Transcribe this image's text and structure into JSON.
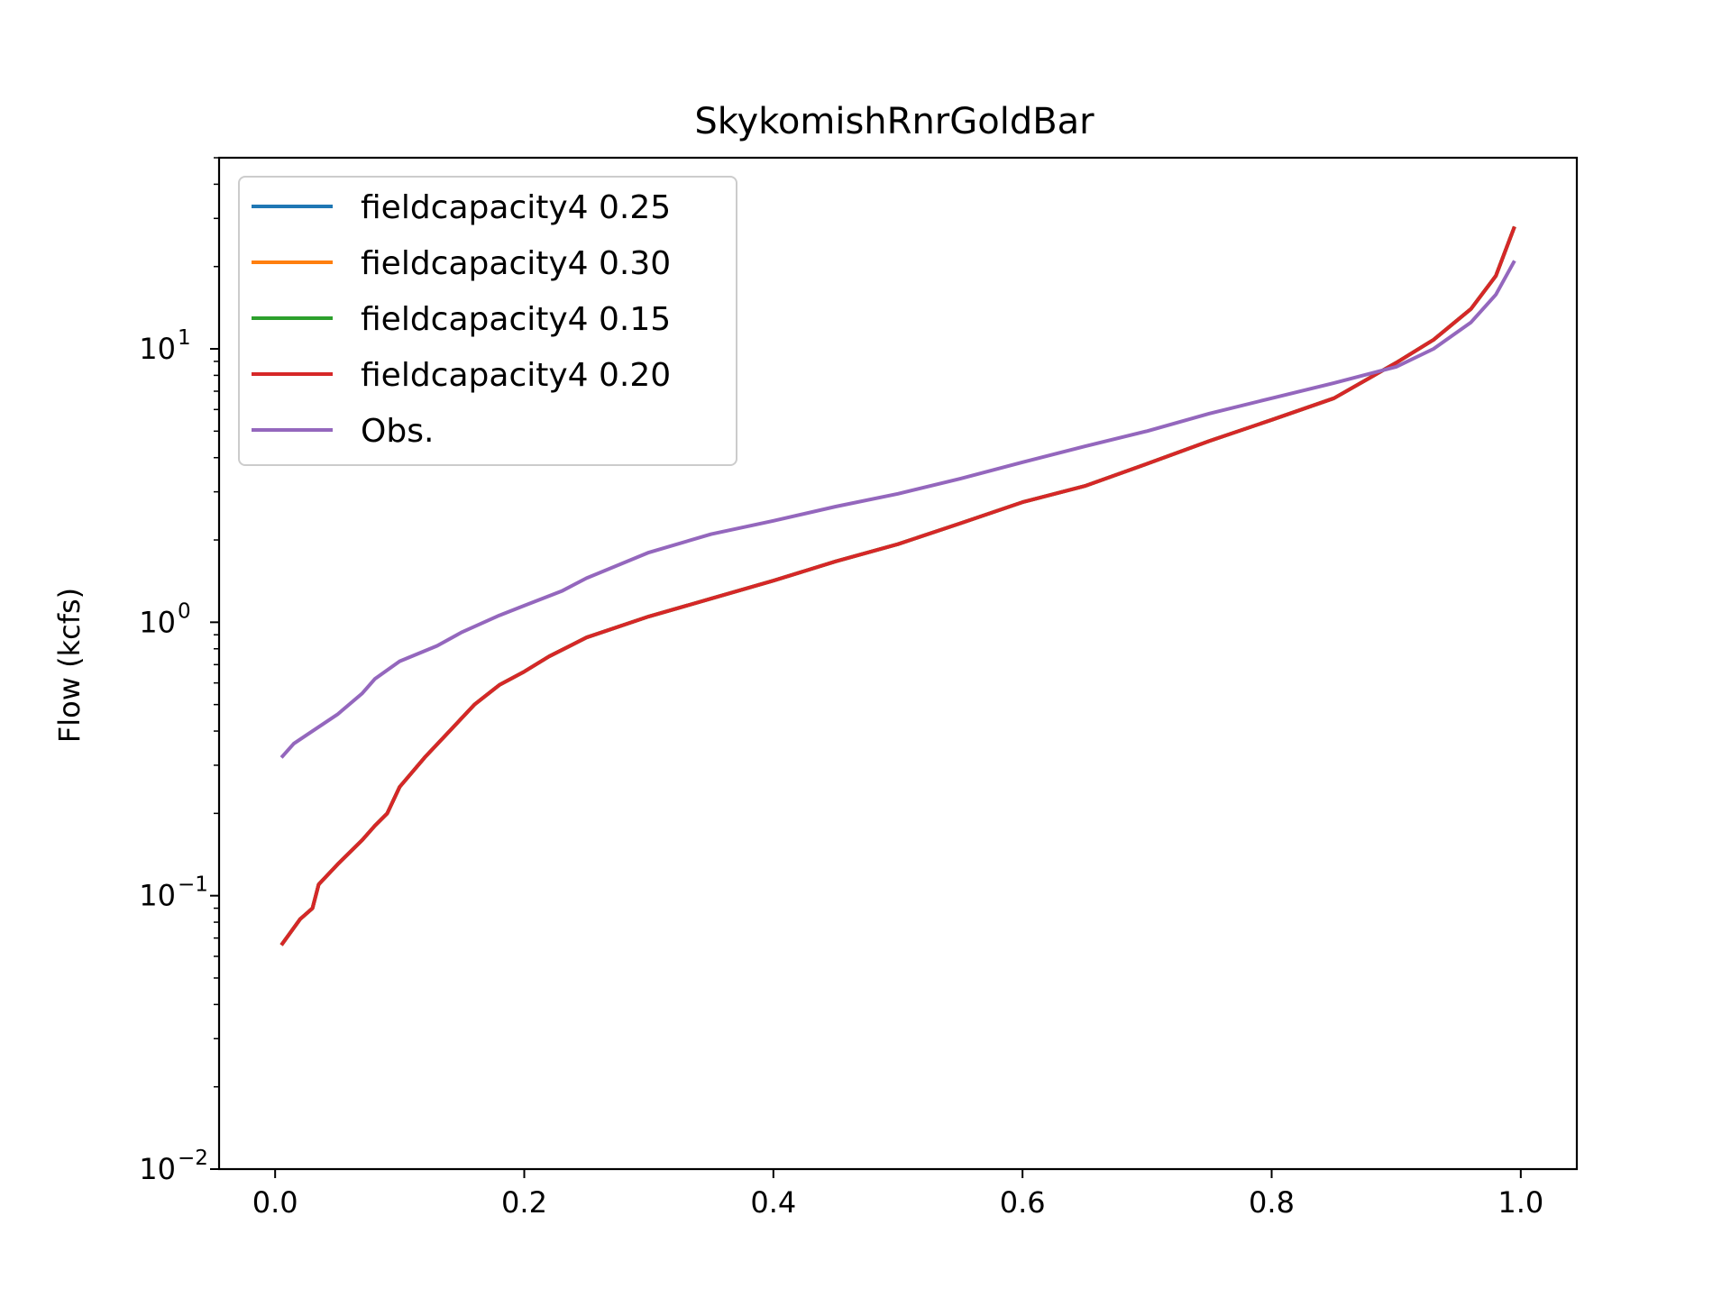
{
  "chart_data": {
    "type": "line",
    "title": "SkykomishRnrGoldBar",
    "xlabel": "",
    "ylabel": "Flow (kcfs)",
    "yscale": "log",
    "xlim": [
      -0.045,
      1.045
    ],
    "ylim": [
      0.01,
      50
    ],
    "x_ticks": [
      "0.0",
      "0.2",
      "0.4",
      "0.6",
      "0.8",
      "1.0"
    ],
    "x_tick_values": [
      0.0,
      0.2,
      0.4,
      0.6,
      0.8,
      1.0
    ],
    "y_ticks": [
      {
        "value": 0.01,
        "base": "10",
        "exp": "−2"
      },
      {
        "value": 0.1,
        "base": "10",
        "exp": "−1"
      },
      {
        "value": 1,
        "base": "10",
        "exp": "0"
      },
      {
        "value": 10,
        "base": "10",
        "exp": "1"
      }
    ],
    "grid": false,
    "legend_position": "top-left",
    "colors": {
      "fieldcapacity4 0.25": "#1f77b4",
      "fieldcapacity4 0.30": "#ff7f0e",
      "fieldcapacity4 0.15": "#2ca02c",
      "fieldcapacity4 0.20": "#d62728",
      "Obs.": "#9467bd"
    },
    "series": [
      {
        "name": "fieldcapacity4 0.25",
        "color": "#1f77b4",
        "x": [
          0.005,
          0.02,
          0.03,
          0.035,
          0.05,
          0.07,
          0.08,
          0.09,
          0.1,
          0.12,
          0.14,
          0.16,
          0.18,
          0.2,
          0.22,
          0.25,
          0.3,
          0.35,
          0.4,
          0.45,
          0.5,
          0.55,
          0.6,
          0.65,
          0.7,
          0.75,
          0.8,
          0.85,
          0.9,
          0.93,
          0.96,
          0.98,
          0.995
        ],
        "y": [
          0.066,
          0.082,
          0.09,
          0.11,
          0.13,
          0.16,
          0.18,
          0.2,
          0.25,
          0.32,
          0.4,
          0.5,
          0.59,
          0.66,
          0.75,
          0.88,
          1.05,
          1.22,
          1.42,
          1.67,
          1.93,
          2.3,
          2.75,
          3.15,
          3.8,
          4.6,
          5.5,
          6.6,
          8.9,
          10.8,
          14.0,
          18.5,
          28.0
        ]
      },
      {
        "name": "fieldcapacity4 0.30",
        "color": "#ff7f0e",
        "x": [
          0.005,
          0.02,
          0.03,
          0.035,
          0.05,
          0.07,
          0.08,
          0.09,
          0.1,
          0.12,
          0.14,
          0.16,
          0.18,
          0.2,
          0.22,
          0.25,
          0.3,
          0.35,
          0.4,
          0.45,
          0.5,
          0.55,
          0.6,
          0.65,
          0.7,
          0.75,
          0.8,
          0.85,
          0.9,
          0.93,
          0.96,
          0.98,
          0.995
        ],
        "y": [
          0.066,
          0.082,
          0.09,
          0.11,
          0.13,
          0.16,
          0.18,
          0.2,
          0.25,
          0.32,
          0.4,
          0.5,
          0.59,
          0.66,
          0.75,
          0.88,
          1.05,
          1.22,
          1.42,
          1.67,
          1.93,
          2.3,
          2.75,
          3.15,
          3.8,
          4.6,
          5.5,
          6.6,
          8.9,
          10.8,
          14.0,
          18.5,
          28.0
        ]
      },
      {
        "name": "fieldcapacity4 0.15",
        "color": "#2ca02c",
        "x": [
          0.005,
          0.02,
          0.03,
          0.035,
          0.05,
          0.07,
          0.08,
          0.09,
          0.1,
          0.12,
          0.14,
          0.16,
          0.18,
          0.2,
          0.22,
          0.25,
          0.3,
          0.35,
          0.4,
          0.45,
          0.5,
          0.55,
          0.6,
          0.65,
          0.7,
          0.75,
          0.8,
          0.85,
          0.9,
          0.93,
          0.96,
          0.98,
          0.995
        ],
        "y": [
          0.066,
          0.082,
          0.09,
          0.11,
          0.13,
          0.16,
          0.18,
          0.2,
          0.25,
          0.32,
          0.4,
          0.5,
          0.59,
          0.66,
          0.75,
          0.88,
          1.05,
          1.22,
          1.42,
          1.67,
          1.93,
          2.3,
          2.75,
          3.15,
          3.8,
          4.6,
          5.5,
          6.6,
          8.9,
          10.8,
          14.0,
          18.5,
          28.0
        ]
      },
      {
        "name": "fieldcapacity4 0.20",
        "color": "#d62728",
        "x": [
          0.005,
          0.02,
          0.03,
          0.035,
          0.05,
          0.07,
          0.08,
          0.09,
          0.1,
          0.12,
          0.14,
          0.16,
          0.18,
          0.2,
          0.22,
          0.25,
          0.3,
          0.35,
          0.4,
          0.45,
          0.5,
          0.55,
          0.6,
          0.65,
          0.7,
          0.75,
          0.8,
          0.85,
          0.9,
          0.93,
          0.96,
          0.98,
          0.995
        ],
        "y": [
          0.066,
          0.082,
          0.09,
          0.11,
          0.13,
          0.16,
          0.18,
          0.2,
          0.25,
          0.32,
          0.4,
          0.5,
          0.59,
          0.66,
          0.75,
          0.88,
          1.05,
          1.22,
          1.42,
          1.67,
          1.93,
          2.3,
          2.75,
          3.15,
          3.8,
          4.6,
          5.5,
          6.6,
          8.9,
          10.8,
          14.0,
          18.5,
          28.0
        ]
      },
      {
        "name": "Obs.",
        "color": "#9467bd",
        "x": [
          0.005,
          0.015,
          0.03,
          0.05,
          0.07,
          0.08,
          0.1,
          0.13,
          0.15,
          0.18,
          0.2,
          0.23,
          0.25,
          0.3,
          0.35,
          0.4,
          0.45,
          0.5,
          0.55,
          0.6,
          0.65,
          0.7,
          0.75,
          0.8,
          0.85,
          0.9,
          0.93,
          0.96,
          0.98,
          0.995
        ],
        "y": [
          0.32,
          0.36,
          0.4,
          0.46,
          0.55,
          0.62,
          0.72,
          0.82,
          0.92,
          1.06,
          1.15,
          1.3,
          1.45,
          1.8,
          2.1,
          2.35,
          2.65,
          2.95,
          3.35,
          3.85,
          4.4,
          5.0,
          5.8,
          6.6,
          7.5,
          8.6,
          10.0,
          12.5,
          15.8,
          21.0
        ]
      }
    ]
  }
}
